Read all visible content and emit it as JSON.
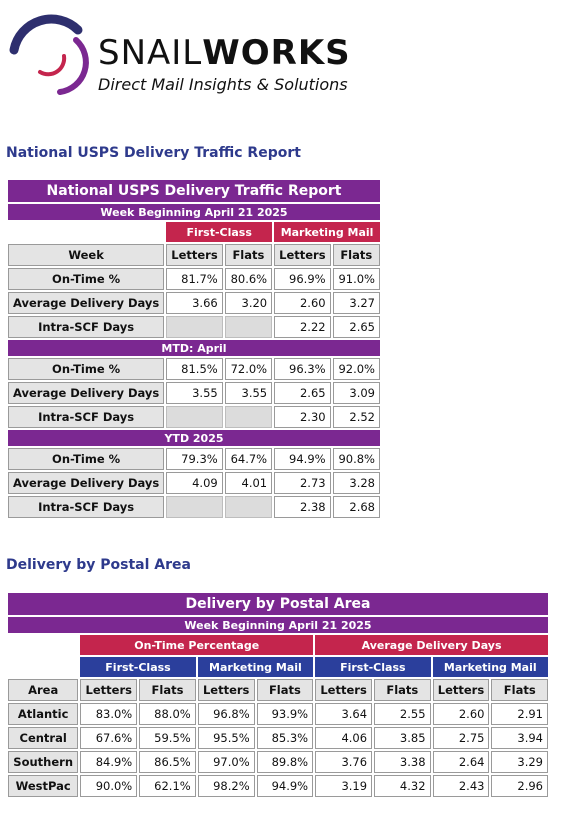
{
  "brand": {
    "name_light": "SNAIL",
    "name_bold": "WORKS",
    "tagline": "Direct Mail Insights & Solutions",
    "colors": {
      "purple": "#7b2891",
      "red": "#c4254d",
      "navy": "#2b3f9c"
    }
  },
  "headings": {
    "national": "National USPS Delivery Traffic Report",
    "postal": "Delivery by Postal Area"
  },
  "national": {
    "title": "National USPS Delivery Traffic Report",
    "week": "Week Beginning April 21 2025",
    "groups": [
      "First-Class",
      "Marketing Mail"
    ],
    "columns": [
      "Week",
      "Letters",
      "Flats",
      "Letters",
      "Flats"
    ],
    "rows_week": [
      {
        "label": "On-Time %",
        "values": [
          "81.7%",
          "80.6%",
          "96.9%",
          "91.0%"
        ]
      },
      {
        "label": "Average Delivery Days",
        "values": [
          "3.66",
          "3.20",
          "2.60",
          "3.27"
        ]
      },
      {
        "label": "Intra-SCF Days",
        "values": [
          "",
          "",
          "2.22",
          "2.65"
        ]
      }
    ],
    "mtd_title": "MTD: April",
    "rows_mtd": [
      {
        "label": "On-Time %",
        "values": [
          "81.5%",
          "72.0%",
          "96.3%",
          "92.0%"
        ]
      },
      {
        "label": "Average Delivery Days",
        "values": [
          "3.55",
          "3.55",
          "2.65",
          "3.09"
        ]
      },
      {
        "label": "Intra-SCF Days",
        "values": [
          "",
          "",
          "2.30",
          "2.52"
        ]
      }
    ],
    "ytd_title": "YTD 2025",
    "rows_ytd": [
      {
        "label": "On-Time %",
        "values": [
          "79.3%",
          "64.7%",
          "94.9%",
          "90.8%"
        ]
      },
      {
        "label": "Average Delivery Days",
        "values": [
          "4.09",
          "4.01",
          "2.73",
          "3.28"
        ]
      },
      {
        "label": "Intra-SCF Days",
        "values": [
          "",
          "",
          "2.38",
          "2.68"
        ]
      }
    ]
  },
  "postal": {
    "title": "Delivery by Postal Area",
    "week": "Week Beginning April 21 2025",
    "metric_groups": [
      "On-Time Percentage",
      "Average Delivery Days"
    ],
    "class_groups": [
      "First-Class",
      "Marketing Mail",
      "First-Class",
      "Marketing Mail"
    ],
    "columns": [
      "Area",
      "Letters",
      "Flats",
      "Letters",
      "Flats",
      "Letters",
      "Flats",
      "Letters",
      "Flats"
    ],
    "rows": [
      {
        "label": "Atlantic",
        "values": [
          "83.0%",
          "88.0%",
          "96.8%",
          "93.9%",
          "3.64",
          "2.55",
          "2.60",
          "2.91"
        ]
      },
      {
        "label": "Central",
        "values": [
          "67.6%",
          "59.5%",
          "95.5%",
          "85.3%",
          "4.06",
          "3.85",
          "2.75",
          "3.94"
        ]
      },
      {
        "label": "Southern",
        "values": [
          "84.9%",
          "86.5%",
          "97.0%",
          "89.8%",
          "3.76",
          "3.38",
          "2.64",
          "3.29"
        ]
      },
      {
        "label": "WestPac",
        "values": [
          "90.0%",
          "62.1%",
          "98.2%",
          "94.9%",
          "3.19",
          "4.32",
          "2.43",
          "2.96"
        ]
      }
    ]
  }
}
